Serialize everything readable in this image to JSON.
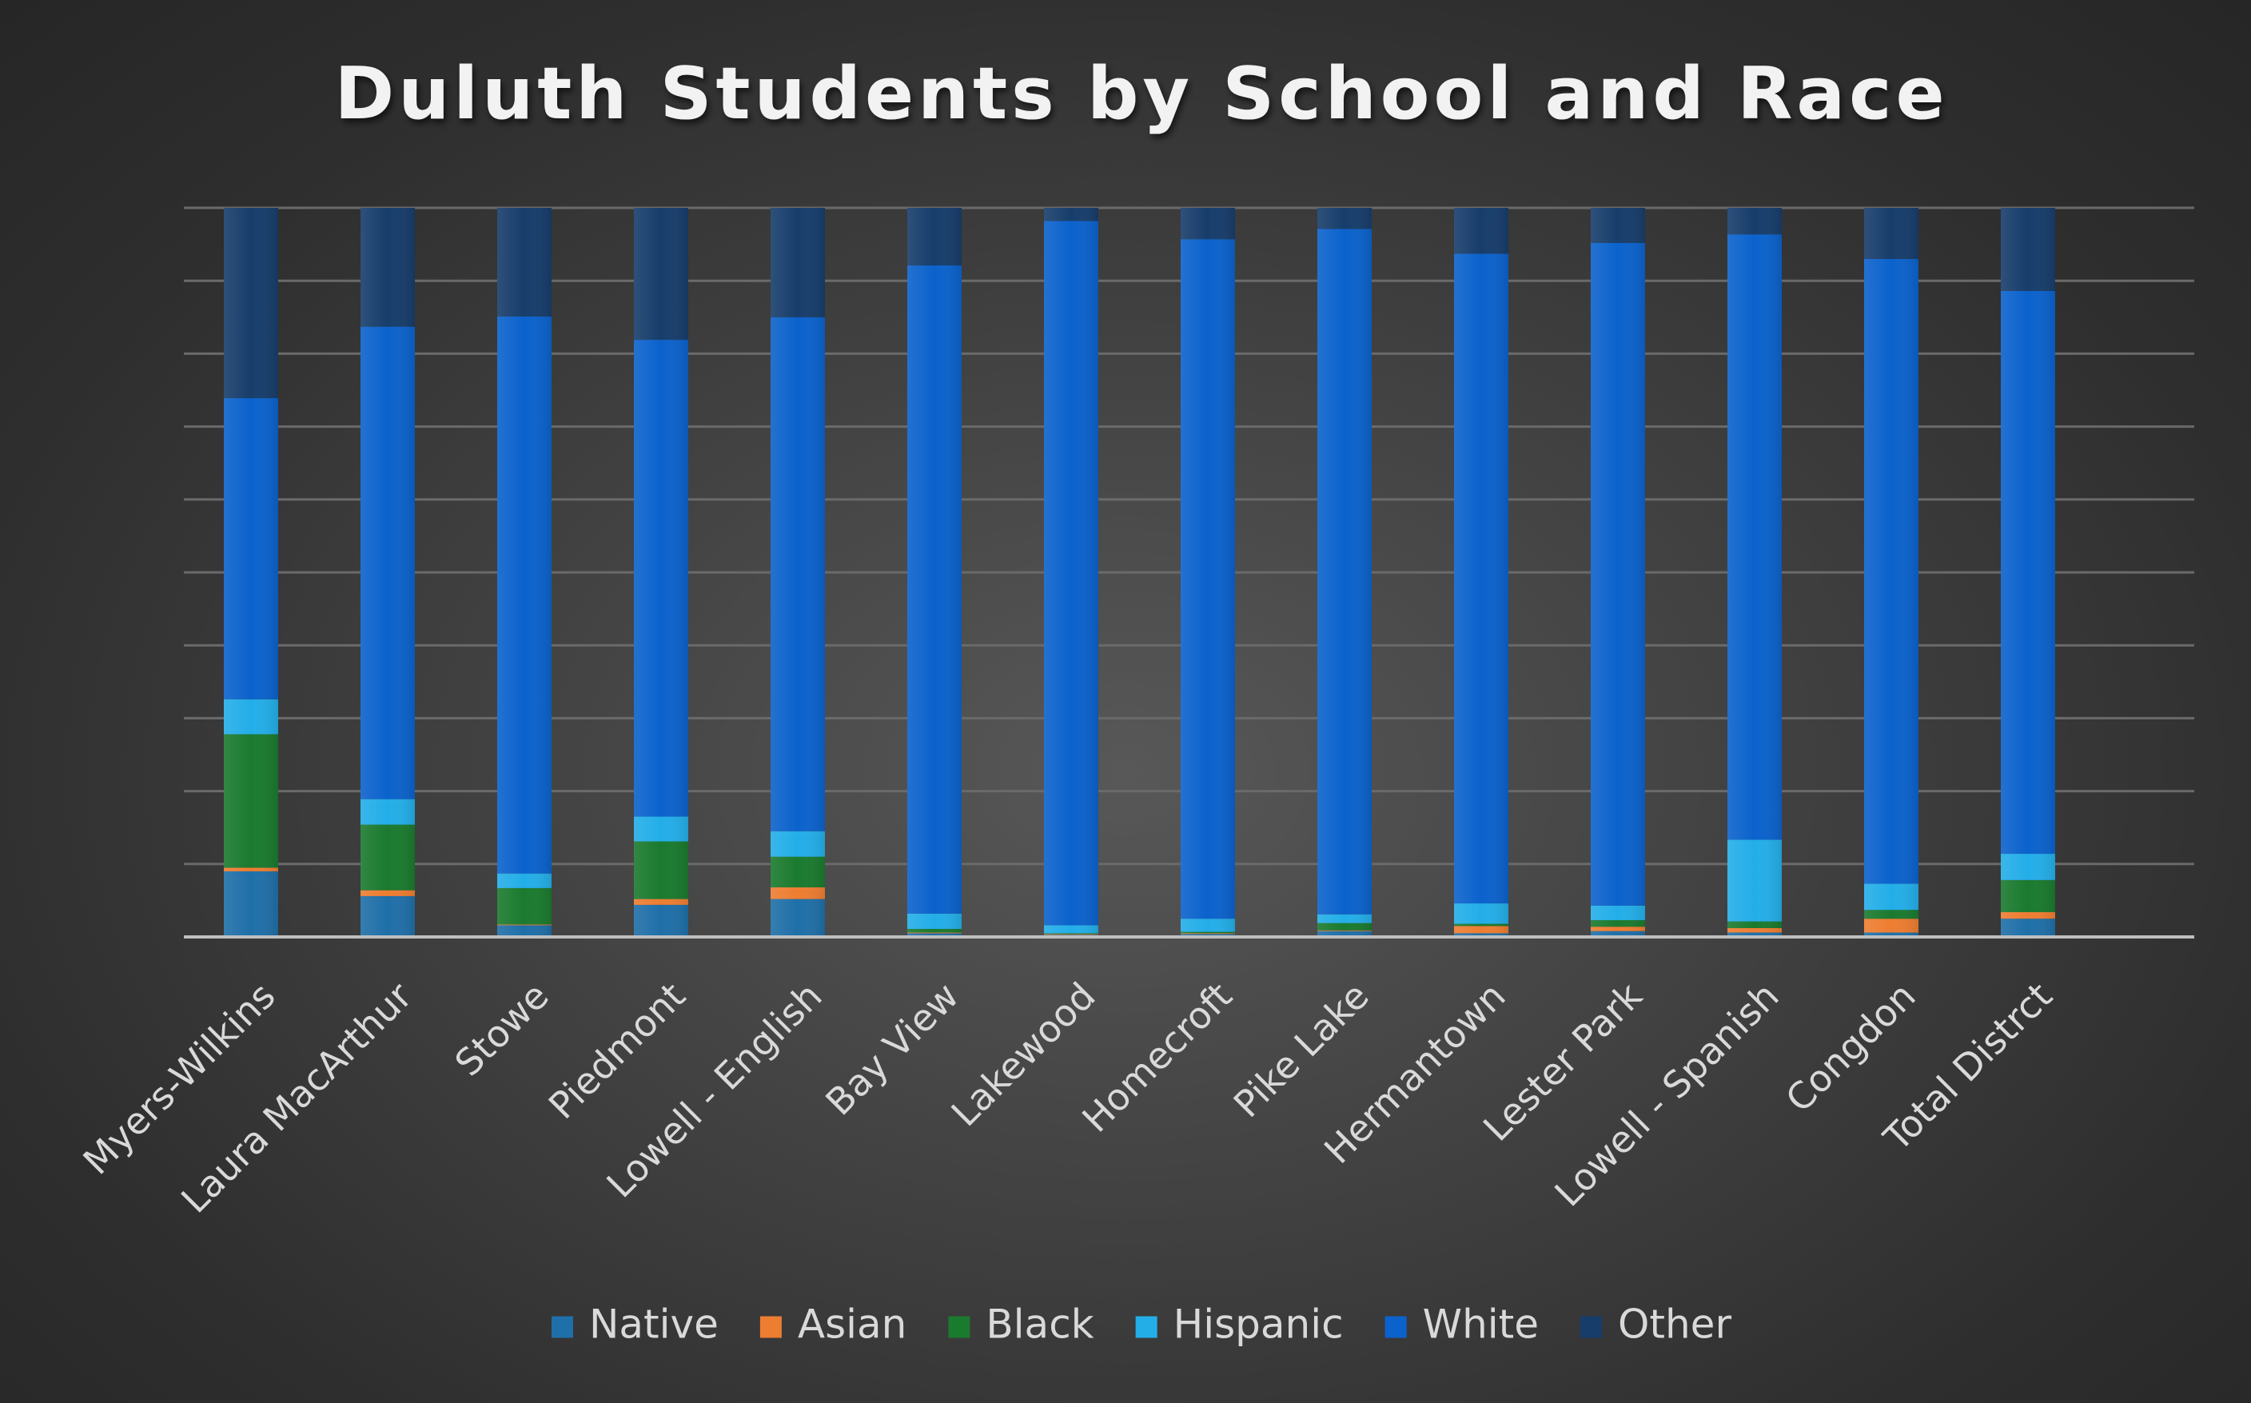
{
  "chart_data": {
    "type": "bar",
    "stacked": true,
    "percent_stacked": true,
    "title": "Duluth Students by School and Race",
    "xlabel": "",
    "ylabel": "",
    "ylim": [
      0,
      100
    ],
    "y_gridlines": [
      0,
      10,
      20,
      30,
      40,
      50,
      60,
      70,
      80,
      90,
      100
    ],
    "y_tick_labels_visible": false,
    "grid": true,
    "legend": "bottom",
    "categories": [
      "Myers-Wilkins",
      "Laura MacArthur",
      "Stowe",
      "Piedmont",
      "Lowell - English",
      "Bay View",
      "Lakewood",
      "Homecroft",
      "Pike Lake",
      "Hermantown",
      "Lester Park",
      "Lowell - Spanish",
      "Congdon",
      "Total Distrct"
    ],
    "series": [
      {
        "name": "Native",
        "color": "#1f6fa8",
        "values": [
          9.0,
          5.6,
          1.6,
          4.4,
          5.2,
          0.5,
          0.3,
          0.4,
          0.8,
          0.5,
          0.8,
          0.6,
          0.6,
          2.5
        ]
      },
      {
        "name": "Asian",
        "color": "#ed7d31",
        "values": [
          0.5,
          0.8,
          0.1,
          0.8,
          1.6,
          0.1,
          0.1,
          0.1,
          0.1,
          1.0,
          0.6,
          0.6,
          1.9,
          0.9
        ]
      },
      {
        "name": "Black",
        "color": "#1a7a2e",
        "values": [
          18.3,
          9.0,
          5.0,
          7.9,
          4.2,
          0.5,
          0.1,
          0.2,
          1.0,
          0.3,
          0.9,
          0.9,
          1.2,
          4.4
        ]
      },
      {
        "name": "Hispanic",
        "color": "#23aee8",
        "values": [
          4.8,
          3.5,
          2.0,
          3.4,
          3.5,
          2.1,
          1.1,
          1.8,
          1.2,
          2.8,
          2.0,
          11.1,
          3.6,
          3.6
        ]
      },
      {
        "name": "White",
        "color": "#0b62cc",
        "values": [
          41.3,
          64.8,
          76.4,
          65.4,
          70.5,
          88.9,
          96.6,
          93.2,
          94.0,
          89.1,
          90.9,
          82.2,
          85.7,
          77.2
        ]
      },
      {
        "name": "Other",
        "color": "#173d6b",
        "values": [
          26.1,
          16.3,
          14.9,
          18.1,
          15.0,
          7.9,
          1.8,
          4.3,
          2.9,
          6.3,
          4.8,
          3.6,
          7.0,
          11.4
        ]
      }
    ]
  }
}
